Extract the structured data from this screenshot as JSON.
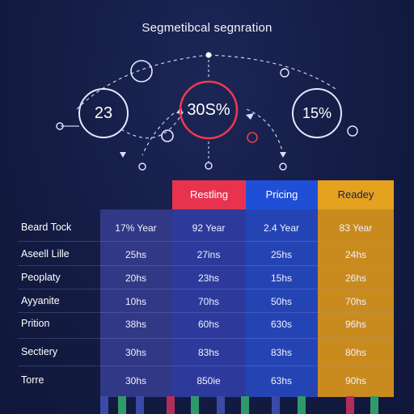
{
  "title": "Segmetibcal segnration",
  "circles": [
    {
      "label": "23"
    },
    {
      "label": "30S%"
    },
    {
      "label": "15%"
    }
  ],
  "colors": {
    "background": "#141c44",
    "accent_red": "#e8334f",
    "accent_blue": "#1f4fd6",
    "accent_gold": "#e5a21f",
    "table_purple": "#343a8c",
    "table_blue": "#2748b8",
    "table_gold": "#c98a1e"
  },
  "table": {
    "columns": [
      "Restling",
      "Pricing",
      "Readey"
    ],
    "corner_label": "Beard Tock",
    "header_row": [
      "17% Year",
      "92 Year",
      "2.4 Year",
      "83 Year"
    ],
    "rows": [
      {
        "label": "Aseell Lille",
        "values": [
          "25hs",
          "27ins",
          "25hs",
          "24hs"
        ]
      },
      {
        "label": "Peoplaty",
        "values": [
          "20hs",
          "23hs",
          "15hs",
          "26hs"
        ]
      },
      {
        "label": "Ayyanite",
        "values": [
          "10hs",
          "70hs",
          "50hs",
          "70hs"
        ]
      },
      {
        "label": "Prition",
        "values": [
          "38hs",
          "60hs",
          "630s",
          "96hs"
        ]
      },
      {
        "label": "Sectiery",
        "values": [
          "30hs",
          "83hs",
          "83hs",
          "80hs"
        ]
      },
      {
        "label": "Torre",
        "values": [
          "30hs",
          "850ie",
          "63hs",
          "90hs"
        ]
      }
    ]
  }
}
